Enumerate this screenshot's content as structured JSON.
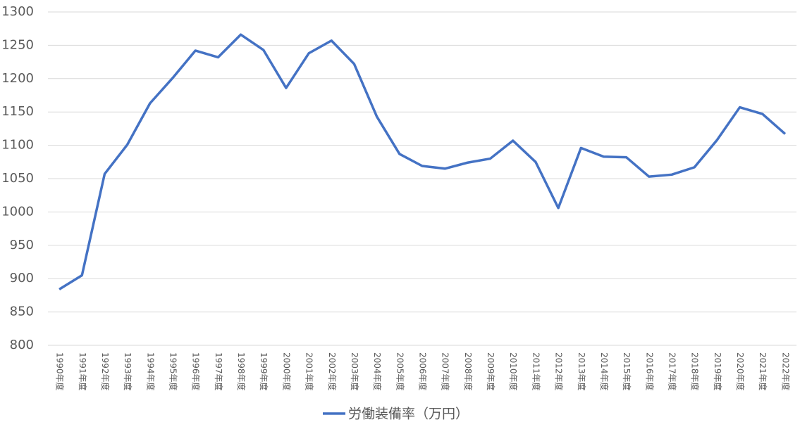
{
  "chart_data": {
    "type": "line",
    "categories": [
      "1990年度",
      "1991年度",
      "1992年度",
      "1993年度",
      "1994年度",
      "1995年度",
      "1996年度",
      "1997年度",
      "1998年度",
      "1999年度",
      "2000年度",
      "2001年度",
      "2002年度",
      "2003年度",
      "2004年度",
      "2005年度",
      "2006年度",
      "2007年度",
      "2008年度",
      "2009年度",
      "2010年度",
      "2011年度",
      "2012年度",
      "2013年度",
      "2014年度",
      "2015年度",
      "2016年度",
      "2017年度",
      "2018年度",
      "2019年度",
      "2020年度",
      "2021年度",
      "2022年度"
    ],
    "series": [
      {
        "name": "労働装備率（万円）",
        "color": "#4472c4",
        "values": [
          884,
          905,
          1057,
          1101,
          1163,
          1201,
          1242,
          1232,
          1266,
          1243,
          1186,
          1238,
          1257,
          1222,
          1143,
          1087,
          1069,
          1065,
          1074,
          1080,
          1107,
          1075,
          1006,
          1096,
          1083,
          1082,
          1053,
          1056,
          1067,
          1108,
          1157,
          1147,
          1117
        ]
      }
    ],
    "ylim": [
      800,
      1300
    ],
    "yticks": [
      800,
      850,
      900,
      950,
      1000,
      1050,
      1100,
      1150,
      1200,
      1250,
      1300
    ],
    "grid": true,
    "legend": "bottom"
  }
}
